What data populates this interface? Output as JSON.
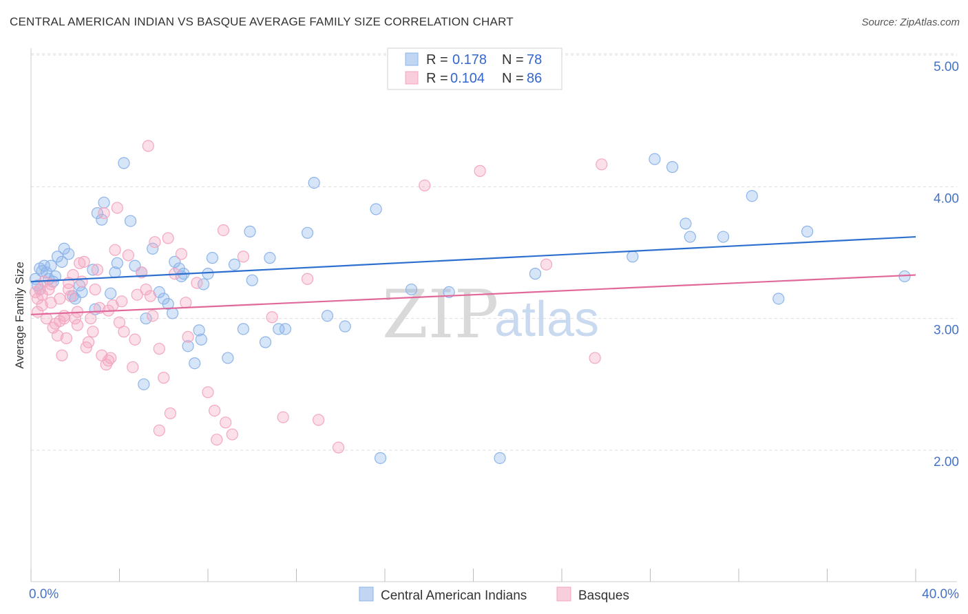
{
  "title": "CENTRAL AMERICAN INDIAN VS BASQUE AVERAGE FAMILY SIZE CORRELATION CHART",
  "source": "Source: ZipAtlas.com",
  "watermark": {
    "zip": "ZIP",
    "atlas": "atlas"
  },
  "legend": {
    "r_label": "R =",
    "n_label": "N =",
    "rows": [
      {
        "r": "0.178",
        "n": "78",
        "color": "#8db4ea"
      },
      {
        "r": "0.104",
        "n": "86",
        "color": "#f4a6c0"
      }
    ]
  },
  "chart_data": {
    "type": "scatter",
    "xlabel": "",
    "ylabel": "Average Family Size",
    "xlim": [
      0,
      40
    ],
    "ylim": [
      1.0,
      5.2
    ],
    "x_tick_labels": {
      "min": "0.0%",
      "max": "40.0%"
    },
    "y_ticks": [
      {
        "value": 2.0,
        "label": "2.00"
      },
      {
        "value": 3.0,
        "label": "3.00"
      },
      {
        "value": 4.0,
        "label": "4.00"
      },
      {
        "value": 5.0,
        "label": "5.00"
      }
    ],
    "grid": true,
    "legend_position": "top-center",
    "series": [
      {
        "name": "Central American Indians",
        "color": "#8db4ea",
        "line_color": "#2c6fce",
        "trend": {
          "x": [
            0,
            40
          ],
          "y": [
            3.28,
            3.62
          ]
        },
        "points": [
          [
            0.2,
            3.3
          ],
          [
            0.3,
            3.25
          ],
          [
            0.4,
            3.38
          ],
          [
            0.5,
            3.36
          ],
          [
            0.6,
            3.4
          ],
          [
            0.7,
            3.35
          ],
          [
            0.9,
            3.4
          ],
          [
            1.1,
            3.32
          ],
          [
            1.2,
            3.47
          ],
          [
            1.4,
            3.43
          ],
          [
            1.5,
            3.53
          ],
          [
            1.7,
            3.49
          ],
          [
            1.9,
            3.17
          ],
          [
            2.0,
            3.15
          ],
          [
            2.2,
            3.25
          ],
          [
            2.8,
            3.37
          ],
          [
            2.9,
            3.07
          ],
          [
            3.0,
            3.8
          ],
          [
            3.3,
            3.88
          ],
          [
            3.2,
            3.75
          ],
          [
            3.6,
            3.19
          ],
          [
            3.8,
            3.35
          ],
          [
            3.9,
            3.42
          ],
          [
            4.2,
            4.18
          ],
          [
            4.5,
            3.74
          ],
          [
            4.7,
            3.4
          ],
          [
            5.0,
            3.35
          ],
          [
            5.1,
            2.5
          ],
          [
            5.2,
            3.0
          ],
          [
            5.5,
            3.53
          ],
          [
            5.8,
            3.2
          ],
          [
            6.0,
            3.15
          ],
          [
            6.2,
            3.11
          ],
          [
            6.4,
            3.04
          ],
          [
            6.5,
            3.43
          ],
          [
            6.7,
            3.38
          ],
          [
            6.8,
            3.32
          ],
          [
            7.1,
            2.79
          ],
          [
            7.4,
            2.66
          ],
          [
            7.6,
            2.91
          ],
          [
            7.7,
            2.84
          ],
          [
            7.8,
            3.26
          ],
          [
            8.0,
            3.34
          ],
          [
            8.2,
            3.46
          ],
          [
            8.9,
            2.7
          ],
          [
            9.2,
            3.41
          ],
          [
            9.6,
            2.92
          ],
          [
            9.9,
            3.66
          ],
          [
            10.0,
            3.29
          ],
          [
            10.6,
            2.82
          ],
          [
            10.8,
            3.46
          ],
          [
            11.2,
            2.92
          ],
          [
            11.5,
            2.92
          ],
          [
            12.5,
            3.65
          ],
          [
            12.8,
            4.03
          ],
          [
            13.4,
            3.02
          ],
          [
            14.2,
            2.94
          ],
          [
            15.6,
            3.83
          ],
          [
            15.8,
            1.94
          ],
          [
            17.2,
            3.22
          ],
          [
            18.9,
            3.2
          ],
          [
            21.2,
            1.94
          ],
          [
            22.8,
            3.34
          ],
          [
            27.2,
            3.47
          ],
          [
            28.2,
            4.21
          ],
          [
            29.0,
            4.15
          ],
          [
            29.6,
            3.72
          ],
          [
            29.8,
            3.62
          ],
          [
            31.3,
            3.62
          ],
          [
            32.6,
            3.93
          ],
          [
            33.8,
            3.15
          ],
          [
            35.1,
            3.66
          ],
          [
            39.5,
            3.32
          ],
          [
            0.4,
            3.22
          ],
          [
            0.8,
            3.3
          ],
          [
            1.0,
            3.28
          ],
          [
            2.3,
            3.2
          ],
          [
            6.9,
            3.34
          ]
        ]
      },
      {
        "name": "Basques",
        "color": "#f4a6c0",
        "line_color": "#e0689a",
        "trend": {
          "x": [
            0,
            40
          ],
          "y": [
            3.03,
            3.33
          ]
        },
        "points": [
          [
            0.2,
            3.2
          ],
          [
            0.3,
            3.15
          ],
          [
            0.3,
            3.05
          ],
          [
            0.4,
            3.22
          ],
          [
            0.5,
            3.1
          ],
          [
            0.6,
            3.28
          ],
          [
            0.7,
            3.0
          ],
          [
            0.8,
            3.22
          ],
          [
            0.9,
            3.12
          ],
          [
            1.0,
            2.93
          ],
          [
            1.1,
            2.96
          ],
          [
            1.2,
            2.87
          ],
          [
            1.3,
            2.98
          ],
          [
            1.3,
            3.15
          ],
          [
            1.4,
            2.72
          ],
          [
            1.5,
            3.0
          ],
          [
            1.6,
            2.85
          ],
          [
            1.7,
            3.27
          ],
          [
            1.7,
            3.22
          ],
          [
            1.8,
            3.17
          ],
          [
            1.9,
            3.33
          ],
          [
            2.0,
            3.0
          ],
          [
            2.1,
            2.95
          ],
          [
            2.2,
            3.42
          ],
          [
            2.3,
            3.28
          ],
          [
            2.4,
            3.43
          ],
          [
            2.5,
            2.78
          ],
          [
            2.6,
            2.82
          ],
          [
            2.7,
            3.0
          ],
          [
            2.8,
            2.9
          ],
          [
            2.9,
            3.22
          ],
          [
            3.0,
            3.37
          ],
          [
            3.1,
            3.08
          ],
          [
            3.2,
            2.72
          ],
          [
            3.3,
            3.8
          ],
          [
            3.4,
            2.65
          ],
          [
            3.5,
            2.68
          ],
          [
            3.6,
            2.7
          ],
          [
            3.7,
            3.1
          ],
          [
            3.8,
            3.52
          ],
          [
            3.9,
            3.84
          ],
          [
            4.0,
            2.97
          ],
          [
            4.1,
            3.13
          ],
          [
            4.4,
            3.48
          ],
          [
            4.6,
            2.63
          ],
          [
            4.7,
            2.84
          ],
          [
            4.8,
            3.18
          ],
          [
            5.0,
            3.35
          ],
          [
            5.2,
            3.22
          ],
          [
            5.3,
            4.31
          ],
          [
            5.4,
            3.17
          ],
          [
            5.6,
            3.58
          ],
          [
            5.8,
            2.77
          ],
          [
            5.8,
            2.15
          ],
          [
            6.0,
            2.55
          ],
          [
            6.2,
            3.61
          ],
          [
            6.3,
            2.28
          ],
          [
            6.5,
            3.34
          ],
          [
            6.8,
            3.49
          ],
          [
            7.1,
            2.86
          ],
          [
            7.5,
            3.27
          ],
          [
            8.0,
            2.44
          ],
          [
            8.3,
            2.3
          ],
          [
            8.4,
            2.08
          ],
          [
            8.7,
            3.67
          ],
          [
            8.8,
            2.21
          ],
          [
            9.1,
            2.12
          ],
          [
            9.6,
            3.47
          ],
          [
            10.9,
            3.01
          ],
          [
            11.4,
            2.25
          ],
          [
            12.5,
            3.3
          ],
          [
            13.0,
            2.23
          ],
          [
            13.9,
            2.02
          ],
          [
            17.8,
            4.01
          ],
          [
            20.3,
            4.12
          ],
          [
            23.3,
            3.41
          ],
          [
            25.5,
            2.7
          ],
          [
            25.8,
            4.17
          ],
          [
            0.5,
            3.18
          ],
          [
            0.9,
            3.26
          ],
          [
            1.5,
            3.02
          ],
          [
            2.1,
            3.05
          ],
          [
            3.5,
            3.06
          ],
          [
            4.2,
            2.9
          ],
          [
            5.5,
            3.02
          ],
          [
            7.0,
            3.12
          ]
        ]
      }
    ]
  }
}
